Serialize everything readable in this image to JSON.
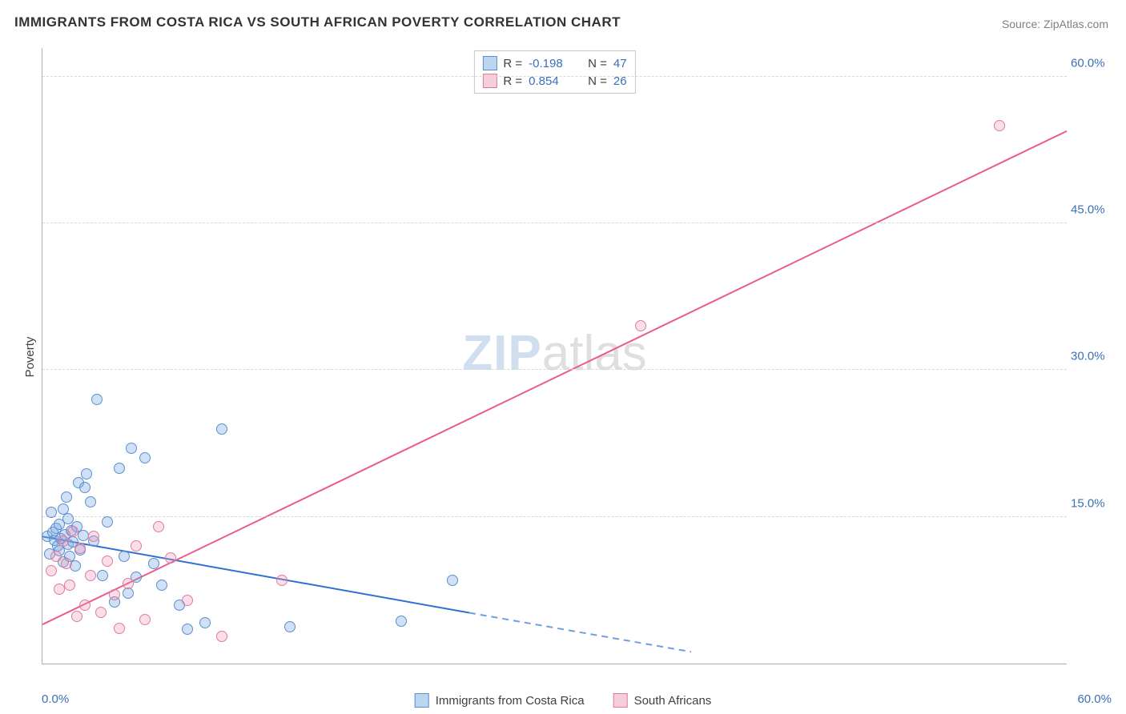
{
  "title": "IMMIGRANTS FROM COSTA RICA VS SOUTH AFRICAN POVERTY CORRELATION CHART",
  "source": "Source: ZipAtlas.com",
  "ylabel": "Poverty",
  "watermark_zip": "ZIP",
  "watermark_atlas": "atlas",
  "chart": {
    "type": "scatter",
    "xlim": [
      0,
      60
    ],
    "ylim": [
      0,
      63
    ],
    "x_tick_min_label": "0.0%",
    "x_tick_max_label": "60.0%",
    "y_gridlines": [
      15,
      30,
      45,
      60
    ],
    "y_tick_labels": [
      "15.0%",
      "30.0%",
      "45.0%",
      "60.0%"
    ],
    "grid_color": "#d8d8d8",
    "axis_color": "#b0b0b0",
    "tick_color": "#3b6fb6",
    "background_color": "#ffffff",
    "marker_radius": 7,
    "marker_border_width": 1.2,
    "series": [
      {
        "key": "costa_rica",
        "label": "Immigrants from Costa Rica",
        "fill": "rgba(120,170,225,0.35)",
        "stroke": "#5b8fd0",
        "swatch_fill": "#bcd6f0",
        "swatch_stroke": "#5b8fd0",
        "R": "-0.198",
        "N": "47",
        "trend": {
          "x1": 0,
          "y1": 13.0,
          "x2_solid": 25,
          "y2_solid": 5.2,
          "x2_dash": 38,
          "y2_dash": 1.2,
          "stroke": "#2f6fd0",
          "width": 2,
          "dash_color": "#6ea0e0"
        },
        "points": [
          [
            0.3,
            13.0
          ],
          [
            0.4,
            11.2
          ],
          [
            0.5,
            15.5
          ],
          [
            0.6,
            13.4
          ],
          [
            0.7,
            12.6
          ],
          [
            0.8,
            13.8
          ],
          [
            0.9,
            12.0
          ],
          [
            1.0,
            14.2
          ],
          [
            1.0,
            11.5
          ],
          [
            1.1,
            12.8
          ],
          [
            1.2,
            15.8
          ],
          [
            1.2,
            10.4
          ],
          [
            1.3,
            13.2
          ],
          [
            1.4,
            17.0
          ],
          [
            1.5,
            12.2
          ],
          [
            1.5,
            14.8
          ],
          [
            1.6,
            11.0
          ],
          [
            1.7,
            13.6
          ],
          [
            1.8,
            12.4
          ],
          [
            1.9,
            10.0
          ],
          [
            2.0,
            14.0
          ],
          [
            2.1,
            18.5
          ],
          [
            2.2,
            11.6
          ],
          [
            2.4,
            13.1
          ],
          [
            2.5,
            18.0
          ],
          [
            2.6,
            19.4
          ],
          [
            2.8,
            16.5
          ],
          [
            3.0,
            12.5
          ],
          [
            3.2,
            27.0
          ],
          [
            3.5,
            9.0
          ],
          [
            3.8,
            14.5
          ],
          [
            4.2,
            6.3
          ],
          [
            4.5,
            20.0
          ],
          [
            4.8,
            11.0
          ],
          [
            5.0,
            7.2
          ],
          [
            5.2,
            22.0
          ],
          [
            5.5,
            8.8
          ],
          [
            6.0,
            21.0
          ],
          [
            6.5,
            10.2
          ],
          [
            7.0,
            8.0
          ],
          [
            8.0,
            6.0
          ],
          [
            8.5,
            3.5
          ],
          [
            9.5,
            4.2
          ],
          [
            10.5,
            24.0
          ],
          [
            14.5,
            3.8
          ],
          [
            21.0,
            4.3
          ],
          [
            24.0,
            8.5
          ]
        ]
      },
      {
        "key": "south_africa",
        "label": "South Africans",
        "fill": "rgba(240,150,180,0.30)",
        "stroke": "#e07aa0",
        "swatch_fill": "#f6cdda",
        "swatch_stroke": "#e07aa0",
        "R": "0.854",
        "N": "26",
        "trend": {
          "x1": 0,
          "y1": 4.0,
          "x2_solid": 60,
          "y2_solid": 54.5,
          "stroke": "#ec5b8a",
          "width": 2
        },
        "points": [
          [
            0.5,
            9.5
          ],
          [
            0.8,
            11.0
          ],
          [
            1.0,
            7.6
          ],
          [
            1.2,
            12.5
          ],
          [
            1.4,
            10.2
          ],
          [
            1.6,
            8.0
          ],
          [
            1.8,
            13.5
          ],
          [
            2.0,
            4.8
          ],
          [
            2.2,
            11.8
          ],
          [
            2.5,
            6.0
          ],
          [
            2.8,
            9.0
          ],
          [
            3.0,
            13.0
          ],
          [
            3.4,
            5.2
          ],
          [
            3.8,
            10.5
          ],
          [
            4.2,
            7.0
          ],
          [
            4.5,
            3.6
          ],
          [
            5.0,
            8.2
          ],
          [
            5.5,
            12.0
          ],
          [
            6.0,
            4.5
          ],
          [
            6.8,
            14.0
          ],
          [
            7.5,
            10.8
          ],
          [
            8.5,
            6.5
          ],
          [
            10.5,
            2.8
          ],
          [
            14.0,
            8.5
          ],
          [
            35.0,
            34.5
          ],
          [
            56.0,
            55.0
          ]
        ]
      }
    ]
  },
  "legend_top": {
    "R_label": "R = ",
    "N_label": "N = "
  },
  "legend_bottom_labels": [
    "Immigrants from Costa Rica",
    "South Africans"
  ]
}
